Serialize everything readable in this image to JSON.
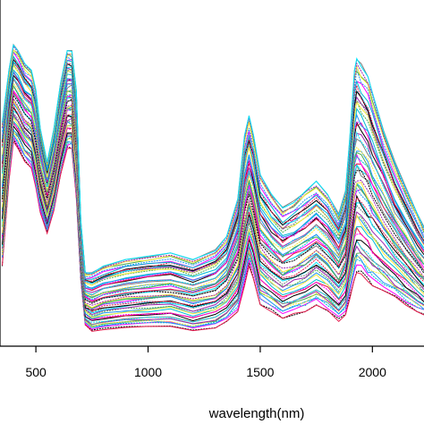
{
  "chart_data": {
    "type": "line",
    "title": "",
    "xlabel": "wavelength(nm)",
    "ylabel": "",
    "xlim": [
      340,
      2230
    ],
    "ylim": [
      0,
      1
    ],
    "xticks": [
      500,
      1000,
      1500,
      2000
    ],
    "xtick_labels": [
      "500",
      "1000",
      "1500",
      "2000"
    ],
    "grid": false,
    "legend": "none",
    "series_count": 60,
    "palette": [
      "#000000",
      "#e6194b",
      "#ff00ff",
      "#00bcd4",
      "#2196f3",
      "#4caf50",
      "#ffeb3b",
      "#9c27b0",
      "#808080",
      "#00e5ff"
    ],
    "wavelength_nm": [
      350,
      380,
      400,
      420,
      450,
      480,
      500,
      520,
      550,
      580,
      610,
      640,
      660,
      680,
      700,
      720,
      750,
      800,
      900,
      1000,
      1100,
      1200,
      1300,
      1350,
      1400,
      1430,
      1450,
      1470,
      1500,
      1550,
      1600,
      1650,
      1700,
      1750,
      1800,
      1850,
      1880,
      1900,
      1920,
      1930,
      1950,
      1980,
      2000,
      2050,
      2100,
      2150,
      2200,
      2230
    ],
    "reflectance_min": [
      0.24,
      0.5,
      0.62,
      0.6,
      0.56,
      0.54,
      0.48,
      0.4,
      0.34,
      0.41,
      0.52,
      0.6,
      0.6,
      0.45,
      0.2,
      0.06,
      0.04,
      0.045,
      0.05,
      0.055,
      0.055,
      0.04,
      0.05,
      0.07,
      0.1,
      0.18,
      0.24,
      0.2,
      0.12,
      0.1,
      0.08,
      0.09,
      0.1,
      0.12,
      0.1,
      0.07,
      0.09,
      0.14,
      0.2,
      0.22,
      0.21,
      0.19,
      0.18,
      0.16,
      0.14,
      0.12,
      0.1,
      0.09
    ],
    "reflectance_max": [
      0.68,
      0.84,
      0.92,
      0.9,
      0.86,
      0.84,
      0.78,
      0.66,
      0.56,
      0.66,
      0.8,
      0.9,
      0.9,
      0.78,
      0.38,
      0.22,
      0.22,
      0.24,
      0.26,
      0.27,
      0.28,
      0.26,
      0.29,
      0.33,
      0.45,
      0.64,
      0.7,
      0.64,
      0.52,
      0.46,
      0.42,
      0.44,
      0.47,
      0.5,
      0.46,
      0.4,
      0.47,
      0.64,
      0.84,
      0.88,
      0.86,
      0.82,
      0.77,
      0.66,
      0.56,
      0.48,
      0.4,
      0.36
    ]
  }
}
